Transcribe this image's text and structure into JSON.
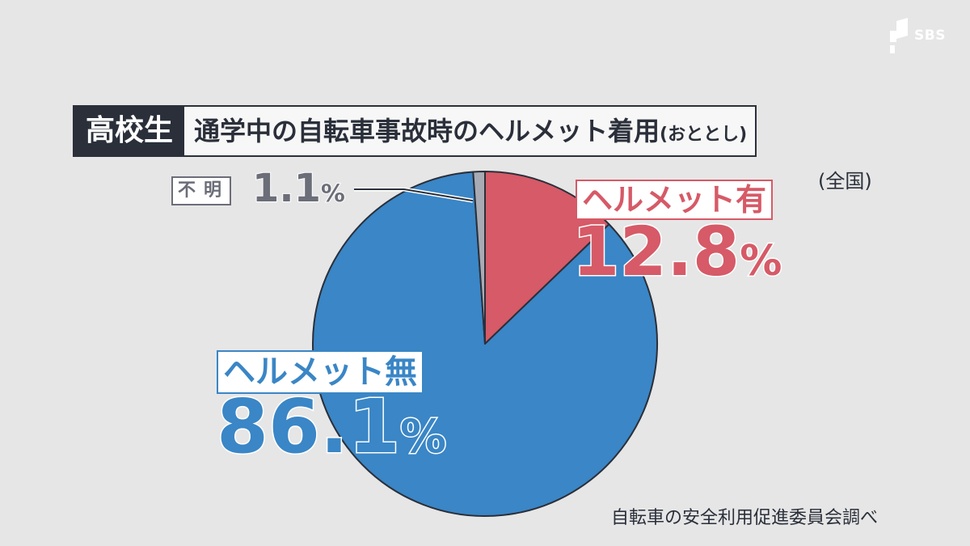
{
  "logo": {
    "text": "SBS"
  },
  "title": {
    "tag": "高校生",
    "main": "通学中の自転車事故時のヘルメット着用",
    "year_note": "(おととし)"
  },
  "scope": "(全国)",
  "source": "自転車の安全利用促進委員会調べ",
  "labels": {
    "unknown": {
      "name": "不明",
      "value": "1.1",
      "unit": "%"
    },
    "yes": {
      "name": "ヘルメット有",
      "value": "12.8",
      "unit": "%"
    },
    "no": {
      "name": "ヘルメット無",
      "value": "86.1",
      "unit": "%"
    }
  },
  "colors": {
    "yes": "#d65a67",
    "no": "#3a86c6",
    "unknown": "#a9abb4",
    "outline": "#2a2f3a",
    "background": "#e6e6e6"
  },
  "chart_data": {
    "type": "pie",
    "title": "通学中の自転車事故時のヘルメット着用(おととし)",
    "categories": [
      "ヘルメット有",
      "ヘルメット無",
      "不明"
    ],
    "values": [
      12.8,
      86.1,
      1.1
    ],
    "unit": "%",
    "start": "12 o'clock",
    "direction": "clockwise"
  }
}
